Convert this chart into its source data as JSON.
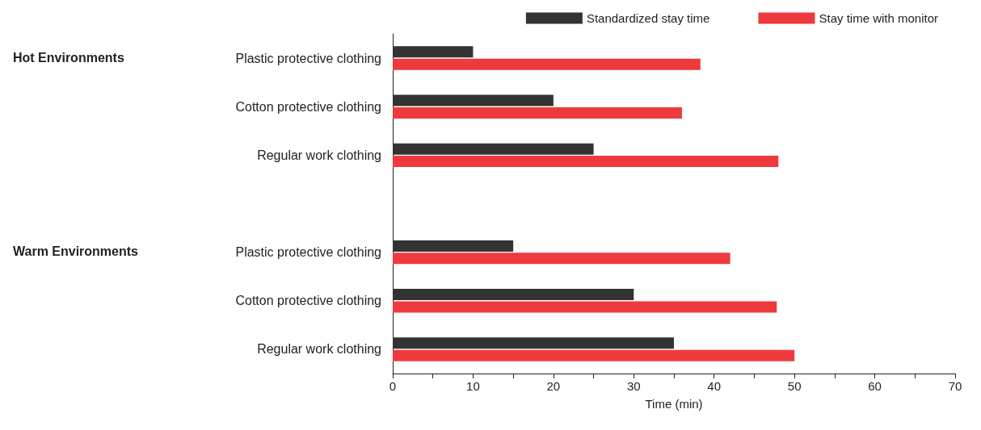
{
  "chart_data": {
    "type": "bar",
    "orientation": "horizontal",
    "xlabel": "Time (min)",
    "categories": [
      "Plastic protective clothing",
      "Cotton protective clothing",
      "Regular work clothing",
      null,
      "Plastic protective clothing",
      "Cotton protective clothing",
      "Regular work clothing"
    ],
    "series": [
      {
        "name": "Standardized stay time",
        "color": "#333333",
        "values": [
          10,
          20,
          25,
          null,
          15,
          30,
          35
        ]
      },
      {
        "name": "Stay time with monitor",
        "color": "#ee3a3d",
        "values": [
          38.3,
          36,
          48,
          null,
          42,
          47.8,
          50
        ]
      }
    ],
    "xlim": [
      0,
      70
    ],
    "xticks": [
      0,
      {
        "value": 5,
        "label": null
      },
      10,
      {
        "value": 15,
        "label": null
      },
      20,
      {
        "value": 25,
        "label": null
      },
      30,
      {
        "value": 35,
        "label": null
      },
      40,
      {
        "value": 45,
        "label": null
      },
      50,
      {
        "value": 55,
        "label": null
      },
      60,
      {
        "value": 65,
        "label": null
      },
      70
    ],
    "annotations": [
      "Hot Environments",
      "Warm Environments"
    ],
    "grid": false,
    "legend": "top right"
  }
}
